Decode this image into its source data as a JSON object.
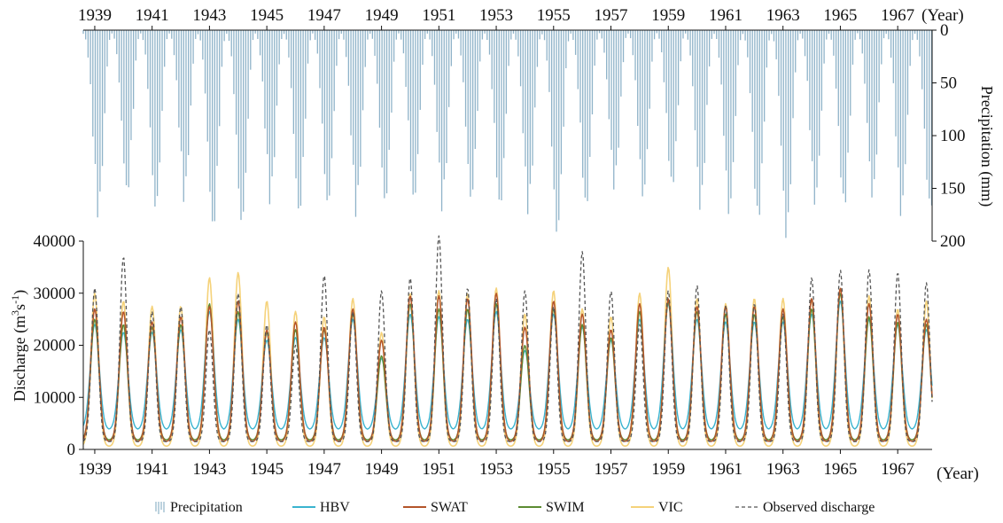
{
  "chart_data": {
    "type": "line",
    "x_unit_label": "(Year)",
    "year_start": 1938.6,
    "year_end": 1968.2,
    "year_ticks": [
      "1939",
      "1941",
      "1943",
      "1945",
      "1947",
      "1949",
      "1951",
      "1953",
      "1955",
      "1957",
      "1959",
      "1961",
      "1963",
      "1965",
      "1967"
    ],
    "discharge_axis": {
      "label_prefix": "Discharge (m",
      "label_sup1": "3",
      "label_mid": "s",
      "label_sup2": "-1",
      "label_suffix": ")",
      "ylim": [
        0,
        40000
      ],
      "ticks": [
        "0",
        "10000",
        "20000",
        "30000",
        "40000"
      ]
    },
    "precip_axis": {
      "label": "Precipitation  (mm)",
      "ylim": [
        0,
        200
      ],
      "inverted": true,
      "ticks": [
        "0",
        "50",
        "100",
        "150",
        "200"
      ]
    },
    "legend": {
      "precipitation": "Precipitation",
      "hbv": "HBV",
      "swat": "SWAT",
      "swim": "SWIM",
      "vic": "VIC",
      "observed": "Observed discharge"
    },
    "colors": {
      "precipitation": "#8fb3c9",
      "hbv": "#3ab3cf",
      "swat": "#b4552a",
      "swim": "#5c8c32",
      "vic": "#f5d27a",
      "observed": "#555555"
    },
    "precip_monthly_profile": [
      3,
      8,
      22,
      48,
      85,
      120,
      150,
      140,
      110,
      70,
      30,
      8
    ],
    "annual_precip_peak": [
      178,
      160,
      175,
      163,
      195,
      190,
      165,
      180,
      172,
      177,
      168,
      168,
      172,
      165,
      175,
      175,
      198,
      175,
      152,
      162,
      155,
      172,
      178,
      188,
      200,
      168,
      175,
      162,
      178,
      178
    ],
    "observed_peaks": [
      31000,
      37000,
      26500,
      27500,
      23000,
      30000,
      24000,
      20000,
      33500,
      26500,
      30500,
      33000,
      41000,
      31000,
      29000,
      30500,
      27500,
      38000,
      30500,
      24000,
      30500,
      31500,
      27500,
      28000,
      26000,
      33000,
      34500,
      34500,
      34000,
      32000
    ],
    "swat_peaks": [
      27000,
      26500,
      24500,
      25500,
      27500,
      28500,
      23000,
      24500,
      23500,
      27000,
      21000,
      29500,
      29500,
      29000,
      30000,
      23500,
      28500,
      26000,
      23000,
      28000,
      29000,
      27500,
      27500,
      27500,
      27000,
      29000,
      31000,
      28000,
      26000,
      25000
    ],
    "swim_peaks": [
      25000,
      24000,
      23500,
      24000,
      28000,
      26500,
      22500,
      23000,
      23000,
      26000,
      18000,
      28000,
      27000,
      27000,
      28000,
      20000,
      27000,
      24000,
      21500,
      26500,
      28500,
      26500,
      26000,
      26000,
      25500,
      27000,
      30000,
      25500,
      24500,
      24000
    ],
    "hbv_peaks": [
      24000,
      22500,
      22500,
      23000,
      26500,
      25000,
      21000,
      21500,
      21500,
      25000,
      17500,
      26000,
      25500,
      25000,
      26500,
      19000,
      26000,
      23500,
      21000,
      25000,
      28000,
      25000,
      24500,
      24500,
      24500,
      26000,
      28500,
      25000,
      24000,
      23000
    ],
    "vic_peaks": [
      30000,
      28500,
      27500,
      27500,
      33000,
      34000,
      28500,
      26500,
      25500,
      29000,
      22500,
      30000,
      30500,
      30000,
      31000,
      26000,
      30500,
      27000,
      25500,
      30000,
      35000,
      29000,
      28000,
      29000,
      29000,
      29000,
      31000,
      29500,
      27000,
      28500
    ],
    "base_flow": {
      "hbv": 3800,
      "swat": 1500,
      "swim": 1800,
      "vic": 600,
      "observed": 1500
    }
  }
}
